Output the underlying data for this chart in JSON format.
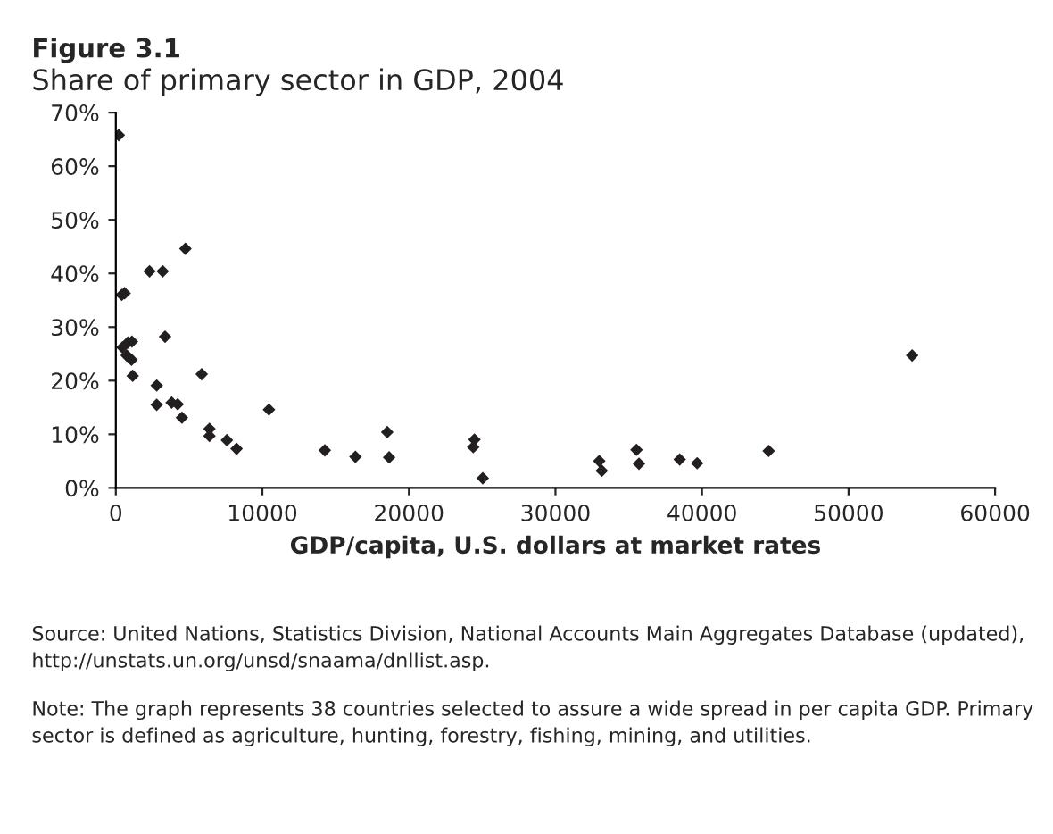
{
  "chart_data": {
    "type": "scatter",
    "title": "Figure 3.1",
    "subtitle": "Share of primary sector in GDP, 2004",
    "xlabel": "GDP/capita, U.S. dollars at market rates",
    "x": [
      200,
      400,
      600,
      4750,
      2300,
      3200,
      3360,
      450,
      820,
      1100,
      740,
      1070,
      1150,
      5860,
      2790,
      2790,
      3810,
      4220,
      4510,
      6390,
      6390,
      7580,
      8240,
      10450,
      14260,
      16350,
      18520,
      18650,
      24470,
      24390,
      25040,
      32990,
      33160,
      35530,
      35700,
      38480,
      39670,
      44550,
      54340
    ],
    "series": [
      {
        "color": "#231f20",
        "values": [
          65.8,
          36.0,
          36.3,
          44.6,
          40.4,
          40.4,
          28.2,
          26.2,
          27.1,
          27.3,
          24.7,
          23.9,
          20.9,
          21.2,
          19.1,
          15.5,
          15.9,
          15.6,
          13.1,
          11.0,
          9.7,
          8.9,
          7.3,
          14.6,
          7.0,
          5.8,
          10.4,
          5.7,
          9.0,
          7.6,
          1.8,
          5.0,
          3.2,
          7.1,
          4.5,
          5.3,
          4.6,
          6.9,
          24.7
        ]
      }
    ],
    "xlim": [
      0,
      60000
    ],
    "xticks": [
      0,
      10000,
      20000,
      30000,
      40000,
      50000,
      60000
    ],
    "ylim": [
      0,
      70
    ],
    "yticks": [
      {
        "value": 0,
        "label": "0%"
      },
      {
        "value": 10,
        "label": "10%"
      },
      {
        "value": 20,
        "label": "20%"
      },
      {
        "value": 30,
        "label": "30%"
      },
      {
        "value": 40,
        "label": "40%"
      },
      {
        "value": 50,
        "label": "50%"
      },
      {
        "value": 60,
        "label": "60%"
      },
      {
        "value": 70,
        "label": "70%"
      }
    ],
    "marker": "diamond",
    "grid": false,
    "legend": false,
    "annotations": [
      "Source: United Nations, Statistics Division, National Accounts Main Aggregates Database (updated), http://unstats.un.org/unsd/snaama/dnllist.asp.",
      "Note: The graph represents 38 countries selected to assure a wide spread in per capita GDP. Primary sector is defined as agriculture, hunting, forestry, fishing, mining, and utilities."
    ]
  }
}
